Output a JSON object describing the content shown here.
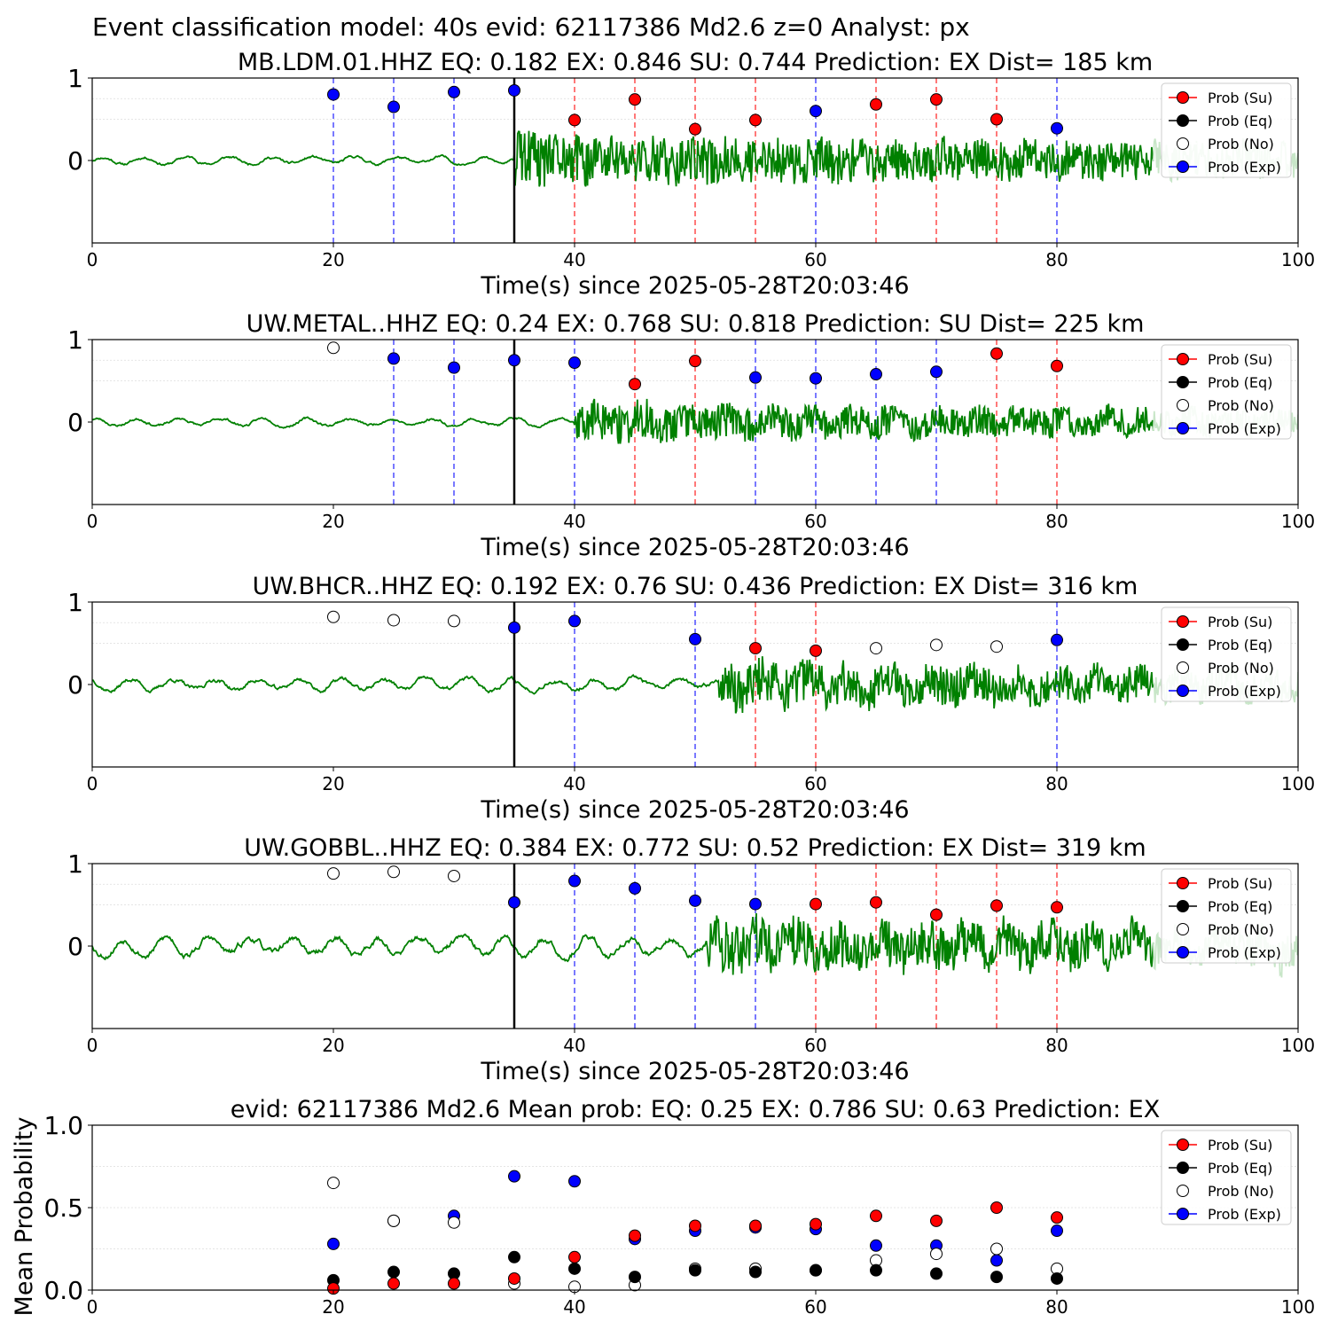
{
  "suptitle": "Event classification model: 40s evid: 62117386 Md2.6 z=0 Analyst: px",
  "colors": {
    "su": "#ff0000",
    "eq": "#000000",
    "no": "#ffffff",
    "exp": "#0000ff",
    "trace": "#008000",
    "trace_light": "#c8e6c8",
    "vline_red": "#ff4d4d",
    "vline_blue": "#4d4dff",
    "pick": "#000000"
  },
  "legend": [
    "Prob (Su)",
    "Prob (Eq)",
    "Prob (No)",
    "Prob (Exp)"
  ],
  "chart_data": [
    {
      "type": "scatter",
      "title": "MB.LDM.01.HHZ   EQ: 0.182  EX: 0.846  SU: 0.744   Prediction: EX    Dist= 185 km",
      "xlabel": "Time(s) since 2025-05-28T20:03:46",
      "xlim": [
        0,
        100
      ],
      "ylim": [
        -1,
        1
      ],
      "xticks": [
        "0",
        "20",
        "40",
        "60",
        "80",
        "100"
      ],
      "yticks": [
        "0",
        "1"
      ],
      "pick_time": 35,
      "waveform": {
        "onset": 35,
        "pre_amp": 0.05,
        "post_amp": 0.35,
        "seed": 11
      },
      "points": [
        {
          "x": 20,
          "y": 0.8,
          "class": "exp"
        },
        {
          "x": 25,
          "y": 0.65,
          "class": "exp"
        },
        {
          "x": 30,
          "y": 0.83,
          "class": "exp"
        },
        {
          "x": 35,
          "y": 0.85,
          "class": "exp"
        },
        {
          "x": 40,
          "y": 0.49,
          "class": "su"
        },
        {
          "x": 45,
          "y": 0.74,
          "class": "su"
        },
        {
          "x": 50,
          "y": 0.38,
          "class": "su"
        },
        {
          "x": 55,
          "y": 0.49,
          "class": "su"
        },
        {
          "x": 60,
          "y": 0.6,
          "class": "exp"
        },
        {
          "x": 65,
          "y": 0.68,
          "class": "su"
        },
        {
          "x": 70,
          "y": 0.74,
          "class": "su"
        },
        {
          "x": 75,
          "y": 0.5,
          "class": "su"
        },
        {
          "x": 80,
          "y": 0.39,
          "class": "exp"
        }
      ]
    },
    {
      "type": "scatter",
      "title": "UW.METAL..HHZ   EQ: 0.24  EX: 0.768  SU: 0.818   Prediction: SU    Dist= 225 km",
      "xlabel": "Time(s) since 2025-05-28T20:03:46",
      "xlim": [
        0,
        100
      ],
      "ylim": [
        -1,
        1
      ],
      "xticks": [
        "0",
        "20",
        "40",
        "60",
        "80",
        "100"
      ],
      "yticks": [
        "0",
        "1"
      ],
      "pick_time": 35,
      "waveform": {
        "onset": 40,
        "pre_amp": 0.05,
        "post_amp": 0.25,
        "seed": 23
      },
      "points": [
        {
          "x": 20,
          "y": 0.9,
          "class": "no"
        },
        {
          "x": 25,
          "y": 0.77,
          "class": "exp"
        },
        {
          "x": 30,
          "y": 0.66,
          "class": "exp"
        },
        {
          "x": 35,
          "y": 0.75,
          "class": "exp"
        },
        {
          "x": 40,
          "y": 0.72,
          "class": "exp"
        },
        {
          "x": 45,
          "y": 0.46,
          "class": "su"
        },
        {
          "x": 50,
          "y": 0.74,
          "class": "su"
        },
        {
          "x": 55,
          "y": 0.54,
          "class": "exp"
        },
        {
          "x": 60,
          "y": 0.53,
          "class": "exp"
        },
        {
          "x": 65,
          "y": 0.58,
          "class": "exp"
        },
        {
          "x": 70,
          "y": 0.61,
          "class": "exp"
        },
        {
          "x": 75,
          "y": 0.83,
          "class": "su"
        },
        {
          "x": 80,
          "y": 0.68,
          "class": "su"
        }
      ]
    },
    {
      "type": "scatter",
      "title": "UW.BHCR..HHZ   EQ: 0.192  EX: 0.76  SU: 0.436   Prediction: EX    Dist= 316 km",
      "xlabel": "Time(s) since 2025-05-28T20:03:46",
      "xlim": [
        0,
        100
      ],
      "ylim": [
        -1,
        1
      ],
      "xticks": [
        "0",
        "20",
        "40",
        "60",
        "80",
        "100"
      ],
      "yticks": [
        "0",
        "1"
      ],
      "pick_time": 35,
      "waveform": {
        "onset": 52,
        "pre_amp": 0.08,
        "post_amp": 0.3,
        "seed": 37
      },
      "points": [
        {
          "x": 20,
          "y": 0.82,
          "class": "no"
        },
        {
          "x": 25,
          "y": 0.78,
          "class": "no"
        },
        {
          "x": 30,
          "y": 0.77,
          "class": "no"
        },
        {
          "x": 35,
          "y": 0.69,
          "class": "exp"
        },
        {
          "x": 40,
          "y": 0.77,
          "class": "exp"
        },
        {
          "x": 50,
          "y": 0.55,
          "class": "exp"
        },
        {
          "x": 55,
          "y": 0.44,
          "class": "su"
        },
        {
          "x": 60,
          "y": 0.41,
          "class": "su"
        },
        {
          "x": 65,
          "y": 0.44,
          "class": "no"
        },
        {
          "x": 70,
          "y": 0.48,
          "class": "no"
        },
        {
          "x": 75,
          "y": 0.46,
          "class": "no"
        },
        {
          "x": 80,
          "y": 0.54,
          "class": "exp"
        }
      ]
    },
    {
      "type": "scatter",
      "title": "UW.GOBBL..HHZ   EQ: 0.384  EX: 0.772  SU: 0.52   Prediction: EX    Dist= 319 km",
      "xlabel": "Time(s) since 2025-05-28T20:03:46",
      "xlim": [
        0,
        100
      ],
      "ylim": [
        -1,
        1
      ],
      "xticks": [
        "0",
        "20",
        "40",
        "60",
        "80",
        "100"
      ],
      "yticks": [
        "0",
        "1"
      ],
      "pick_time": 35,
      "waveform": {
        "onset": 51,
        "pre_amp": 0.12,
        "post_amp": 0.35,
        "seed": 53
      },
      "points": [
        {
          "x": 20,
          "y": 0.88,
          "class": "no"
        },
        {
          "x": 25,
          "y": 0.9,
          "class": "no"
        },
        {
          "x": 30,
          "y": 0.85,
          "class": "no"
        },
        {
          "x": 35,
          "y": 0.53,
          "class": "exp"
        },
        {
          "x": 40,
          "y": 0.79,
          "class": "exp"
        },
        {
          "x": 45,
          "y": 0.7,
          "class": "exp"
        },
        {
          "x": 50,
          "y": 0.55,
          "class": "exp"
        },
        {
          "x": 55,
          "y": 0.51,
          "class": "exp"
        },
        {
          "x": 60,
          "y": 0.51,
          "class": "su"
        },
        {
          "x": 65,
          "y": 0.53,
          "class": "su"
        },
        {
          "x": 70,
          "y": 0.38,
          "class": "su"
        },
        {
          "x": 75,
          "y": 0.49,
          "class": "su"
        },
        {
          "x": 80,
          "y": 0.47,
          "class": "su"
        }
      ]
    },
    {
      "type": "scatter",
      "title": "evid: 62117386  Md2.6   Mean prob:   EQ: 0.25  EX: 0.786  SU: 0.63   Prediction: EX",
      "xlabel": "",
      "ylabel": "Mean Probability",
      "xlim": [
        0,
        100
      ],
      "ylim": [
        0,
        1
      ],
      "xticks": [
        "0",
        "20",
        "40",
        "60",
        "80",
        "100"
      ],
      "yticks": [
        "0.0",
        "0.5",
        "1.0"
      ],
      "x": [
        20,
        25,
        30,
        35,
        40,
        45,
        50,
        55,
        60,
        65,
        70,
        75,
        80
      ],
      "series": [
        {
          "name": "Prob (Exp)",
          "class": "exp",
          "values": [
            0.28,
            0.42,
            0.45,
            0.69,
            0.66,
            0.31,
            0.36,
            0.38,
            0.37,
            0.27,
            0.27,
            0.18,
            0.36
          ]
        },
        {
          "name": "Prob (No)",
          "class": "no",
          "values": [
            0.65,
            0.42,
            0.41,
            0.04,
            0.02,
            0.03,
            0.13,
            0.13,
            0.12,
            0.18,
            0.22,
            0.25,
            0.13
          ]
        },
        {
          "name": "Prob (Eq)",
          "class": "eq",
          "values": [
            0.06,
            0.11,
            0.1,
            0.2,
            0.13,
            0.08,
            0.12,
            0.11,
            0.12,
            0.12,
            0.1,
            0.08,
            0.07
          ]
        },
        {
          "name": "Prob (Su)",
          "class": "su",
          "values": [
            0.01,
            0.04,
            0.04,
            0.07,
            0.2,
            0.33,
            0.39,
            0.39,
            0.4,
            0.45,
            0.42,
            0.5,
            0.44
          ]
        }
      ]
    }
  ]
}
